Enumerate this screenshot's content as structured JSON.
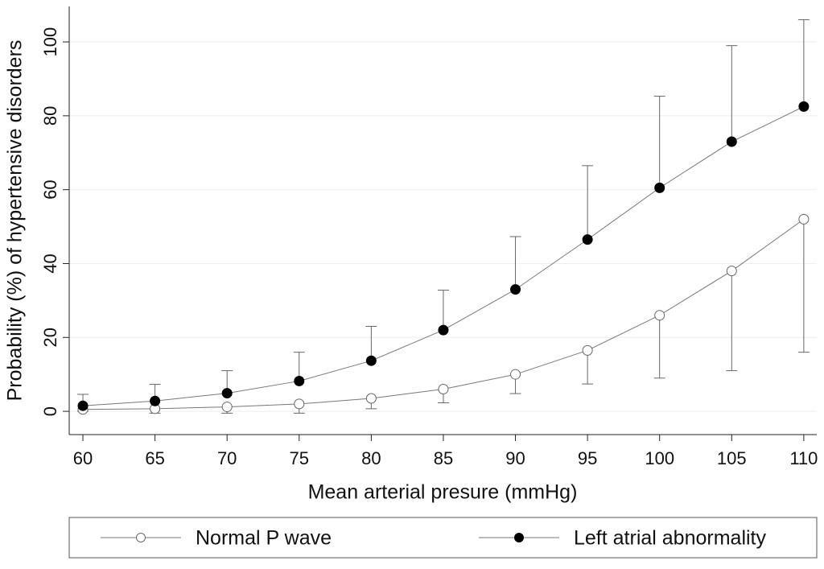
{
  "chart_data": {
    "type": "line",
    "xlabel": "Mean arterial presure (mmHg)",
    "ylabel": "Probability (%) of hypertensive disorders",
    "x": [
      60,
      65,
      70,
      75,
      80,
      85,
      90,
      95,
      100,
      105,
      110
    ],
    "series": [
      {
        "name": "Normal P wave",
        "color": "#777777",
        "marker_fill": "#ffffff",
        "values": [
          0.5,
          0.7,
          1.2,
          2,
          3.5,
          6,
          10,
          16.5,
          26,
          38,
          52
        ],
        "lower": [
          0,
          -0.5,
          -0.5,
          -0.5,
          0.7,
          2.3,
          4.8,
          7.4,
          9,
          11,
          16
        ]
      },
      {
        "name": "Left atrial abnormality",
        "color": "#777777",
        "marker_fill": "#000000",
        "values": [
          1.5,
          2.8,
          4.9,
          8.2,
          13.7,
          22,
          33,
          46.5,
          60.5,
          73,
          82.5
        ],
        "upper": [
          4.6,
          7.3,
          11,
          16,
          23,
          32.8,
          47.3,
          66.5,
          85.3,
          99,
          106
        ]
      }
    ],
    "xlim": [
      59.05,
      110.9
    ],
    "ylim": [
      -6.3,
      109.6
    ],
    "xticks": [
      60,
      65,
      70,
      75,
      80,
      85,
      90,
      95,
      100,
      105,
      110
    ],
    "yticks": [
      0,
      20,
      40,
      60,
      80,
      100
    ],
    "grid": true,
    "legend": "bottom"
  }
}
